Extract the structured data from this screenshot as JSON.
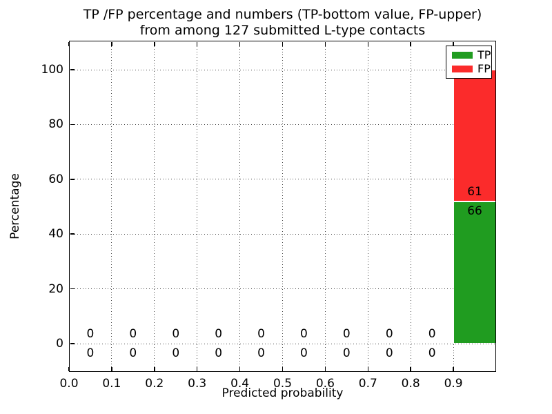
{
  "figure": {
    "title_line1": "TP /FP percentage and numbers (TP-bottom value, FP-upper)",
    "title_line2": "from among 127 submitted L-type contacts"
  },
  "axes": {
    "xlabel": "Predicted probability",
    "ylabel": "Percentage"
  },
  "legend": {
    "position": "upper right",
    "items": [
      {
        "label": "TP",
        "color": "#209c20"
      },
      {
        "label": "FP",
        "color": "#fb2b2b"
      }
    ]
  },
  "colors": {
    "tp_bar": "#209c20",
    "fp_bar": "#fb2b2b",
    "bar_edge": "#ffffff",
    "grid": "#444444",
    "spine": "#000000",
    "text": "#000000",
    "background": "#ffffff"
  },
  "chart_data": {
    "type": "bar",
    "stacked": true,
    "title": "TP /FP percentage and numbers (TP-bottom value, FP-upper) from among 127 submitted L-type contacts",
    "xlabel": "Predicted probability",
    "ylabel": "Percentage",
    "total_contacts": 127,
    "xlim": [
      0.0,
      1.0
    ],
    "ylim": [
      -10.3,
      110.6
    ],
    "xtick_labels": [
      "0.0",
      "0.1",
      "0.2",
      "0.3",
      "0.4",
      "0.5",
      "0.6",
      "0.7",
      "0.8",
      "0.9"
    ],
    "ytick_labels": [
      "0",
      "20",
      "40",
      "60",
      "80",
      "100"
    ],
    "grid": "dotted",
    "legend_position": "upper right",
    "bin_edges": [
      0.0,
      0.1,
      0.2,
      0.3,
      0.4,
      0.5,
      0.6,
      0.7,
      0.8,
      0.9,
      1.0
    ],
    "bin_centers": [
      0.05,
      0.15,
      0.25,
      0.35,
      0.45,
      0.55,
      0.65,
      0.75,
      0.85,
      0.95
    ],
    "series": [
      {
        "name": "TP",
        "color": "#209c20",
        "counts": [
          0,
          0,
          0,
          0,
          0,
          0,
          0,
          0,
          0,
          66
        ],
        "percent": [
          0,
          0,
          0,
          0,
          0,
          0,
          0,
          0,
          0,
          51.97
        ]
      },
      {
        "name": "FP",
        "color": "#fb2b2b",
        "counts": [
          0,
          0,
          0,
          0,
          0,
          0,
          0,
          0,
          0,
          61
        ],
        "percent": [
          0,
          0,
          0,
          0,
          0,
          0,
          0,
          0,
          0,
          48.03
        ]
      }
    ]
  }
}
